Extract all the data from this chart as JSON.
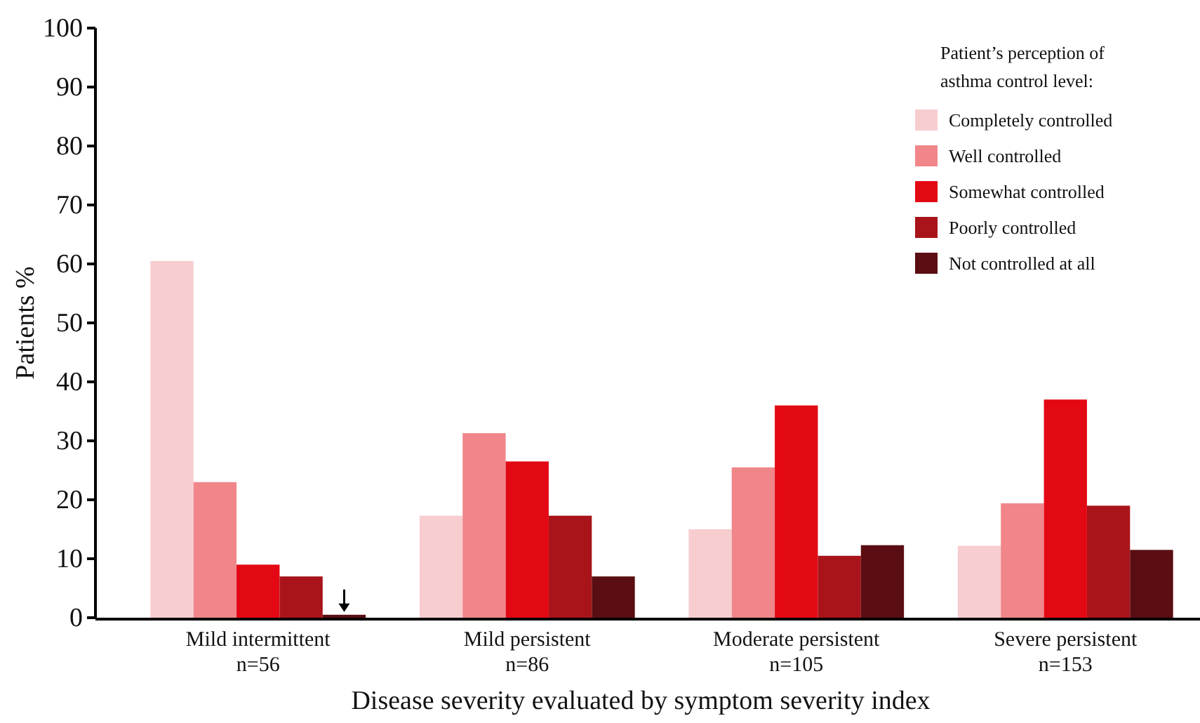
{
  "chart_data": {
    "type": "bar",
    "xlabel": "Disease severity evaluated by symptom severity index",
    "ylabel": "Patients %",
    "legend_title": "Patient’s perception of\nasthma control level:",
    "categories": [
      "Mild intermittent\nn=56",
      "Mild persistent\nn=86",
      "Moderate persistent\nn=105",
      "Severe persistent\nn=153"
    ],
    "series": [
      {
        "name": "Completely controlled",
        "color": "#f7cdd0",
        "values": [
          60.5,
          17.3,
          15,
          12.2
        ]
      },
      {
        "name": "Well controlled",
        "color": "#f0868a",
        "values": [
          23,
          31.3,
          25.5,
          19.4
        ]
      },
      {
        "name": "Somewhat controlled",
        "color": "#e30914",
        "values": [
          9,
          26.5,
          36,
          37
        ]
      },
      {
        "name": "Poorly controlled",
        "color": "#a8141a",
        "values": [
          7,
          17.3,
          10.5,
          19
        ]
      },
      {
        "name": "Not controlled at all",
        "color": "#5a0d12",
        "values": [
          0.5,
          7,
          12.3,
          11.5
        ]
      }
    ],
    "ylim": [
      0,
      100
    ],
    "yticks": [
      0,
      10,
      20,
      30,
      40,
      50,
      60,
      70,
      80,
      90,
      100
    ],
    "legend": "top right"
  }
}
